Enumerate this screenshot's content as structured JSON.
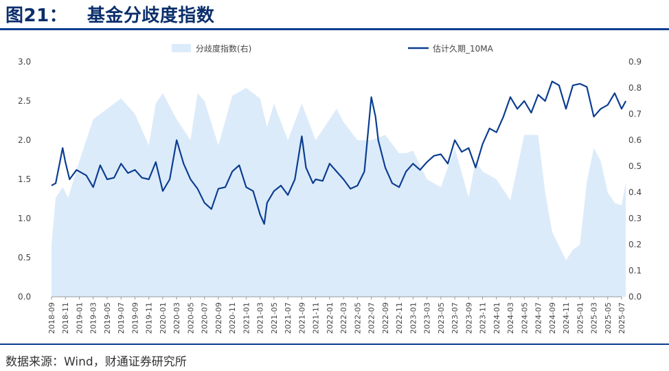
{
  "header": {
    "title": "图21：   基金分歧度指数"
  },
  "footer": {
    "source": "数据来源：Wind，财通证券研究所"
  },
  "colors": {
    "area": "#dcebfa",
    "line": "#0b3d91",
    "axis": "#999999",
    "text": "#444444"
  },
  "chart_data": {
    "type": "line+area",
    "title": "基金分歧度指数",
    "legend": [
      "分歧度指数(右)",
      "估计久期_10MA"
    ],
    "legend_position": "top-center",
    "y_left": {
      "min": 0,
      "max": 3.0,
      "ticks": [
        "3.0",
        "2.5",
        "2.0",
        "1.5",
        "1.0",
        "0.5",
        "0.0"
      ]
    },
    "y_right": {
      "min": 0,
      "max": 0.9,
      "ticks": [
        "0.9",
        "0.8",
        "0.7",
        "0.6",
        "0.5",
        "0.4",
        "0.3",
        "0.2",
        "0.1",
        "0.0"
      ]
    },
    "x_ticks": [
      "2018-09",
      "2018-11",
      "2019-01",
      "2019-03",
      "2019-05",
      "2019-07",
      "2019-09",
      "2019-11",
      "2020-01",
      "2020-03",
      "2020-05",
      "2020-07",
      "2020-09",
      "2020-11",
      "2021-01",
      "2021-03",
      "2021-05",
      "2021-07",
      "2021-09",
      "2021-11",
      "2022-01",
      "2022-03",
      "2022-05",
      "2022-07",
      "2022-09",
      "2022-11",
      "2023-01",
      "2023-03",
      "2023-05",
      "2023-07",
      "2023-09",
      "2023-11",
      "2024-01",
      "2024-03",
      "2024-05",
      "2024-07",
      "2024-09",
      "2024-11",
      "2025-01",
      "2025-03",
      "2025-05",
      "2025-07"
    ],
    "series": [
      {
        "name": "分歧度指数(右)",
        "axis": "right",
        "style": "area",
        "x": [
          0,
          0.3,
          0.8,
          1.2,
          2,
          3,
          4,
          5,
          6,
          7,
          7.5,
          8,
          9,
          10,
          10.5,
          11,
          12,
          13,
          14,
          15,
          15.5,
          16,
          17,
          18,
          19,
          20,
          20.5,
          21,
          22,
          23,
          24,
          25,
          25.5,
          26,
          27,
          28,
          29,
          30,
          30.5,
          31,
          32,
          33,
          34,
          35,
          35.5,
          36,
          37,
          37.5,
          38,
          38.5,
          39,
          39.5,
          40,
          40.5,
          41,
          41.3
        ],
        "values": [
          0.2,
          0.38,
          0.42,
          0.38,
          0.52,
          0.68,
          0.72,
          0.76,
          0.7,
          0.58,
          0.74,
          0.78,
          0.68,
          0.6,
          0.78,
          0.75,
          0.58,
          0.77,
          0.8,
          0.76,
          0.65,
          0.74,
          0.6,
          0.74,
          0.6,
          0.68,
          0.72,
          0.67,
          0.6,
          0.6,
          0.62,
          0.55,
          0.55,
          0.56,
          0.45,
          0.42,
          0.57,
          0.38,
          0.52,
          0.48,
          0.45,
          0.37,
          0.62,
          0.62,
          0.4,
          0.25,
          0.14,
          0.18,
          0.2,
          0.44,
          0.57,
          0.52,
          0.4,
          0.36,
          0.35,
          0.44
        ]
      },
      {
        "name": "估计久期_10MA",
        "axis": "left",
        "style": "line",
        "x": [
          0,
          0.3,
          0.8,
          1,
          1.3,
          1.8,
          2.5,
          3,
          3.5,
          4,
          4.5,
          5,
          5.5,
          6,
          6.5,
          7,
          7.5,
          8,
          8.5,
          9,
          9.5,
          10,
          10.5,
          11,
          11.5,
          12,
          12.5,
          13,
          13.5,
          14,
          14.5,
          15,
          15.3,
          15.5,
          16,
          16.5,
          17,
          17.5,
          18,
          18.3,
          18.8,
          19,
          19.5,
          20,
          20.5,
          21,
          21.5,
          22,
          22.5,
          23,
          23.3,
          23.5,
          24,
          24.5,
          25,
          25.5,
          26,
          26.5,
          27,
          27.5,
          28,
          28.5,
          29,
          29.5,
          30,
          30.5,
          31,
          31.5,
          32,
          32.5,
          33,
          33.5,
          34,
          34.5,
          35,
          35.5,
          36,
          36.5,
          37,
          37.5,
          38,
          38.5,
          39,
          39.5,
          40,
          40.5,
          41,
          41.3
        ],
        "values": [
          1.42,
          1.45,
          1.9,
          1.72,
          1.5,
          1.62,
          1.55,
          1.4,
          1.68,
          1.5,
          1.52,
          1.7,
          1.58,
          1.62,
          1.52,
          1.5,
          1.72,
          1.35,
          1.5,
          2.0,
          1.7,
          1.5,
          1.38,
          1.2,
          1.12,
          1.38,
          1.4,
          1.6,
          1.68,
          1.4,
          1.35,
          1.05,
          0.93,
          1.2,
          1.35,
          1.42,
          1.3,
          1.5,
          2.05,
          1.65,
          1.45,
          1.5,
          1.48,
          1.7,
          1.6,
          1.5,
          1.38,
          1.42,
          1.6,
          2.55,
          2.3,
          2.0,
          1.65,
          1.45,
          1.4,
          1.6,
          1.7,
          1.62,
          1.72,
          1.8,
          1.82,
          1.7,
          2.0,
          1.85,
          1.9,
          1.65,
          1.95,
          2.15,
          2.1,
          2.3,
          2.55,
          2.4,
          2.5,
          2.35,
          2.58,
          2.5,
          2.75,
          2.7,
          2.4,
          2.7,
          2.72,
          2.68,
          2.3,
          2.4,
          2.45,
          2.6,
          2.4,
          2.5
        ]
      }
    ]
  }
}
